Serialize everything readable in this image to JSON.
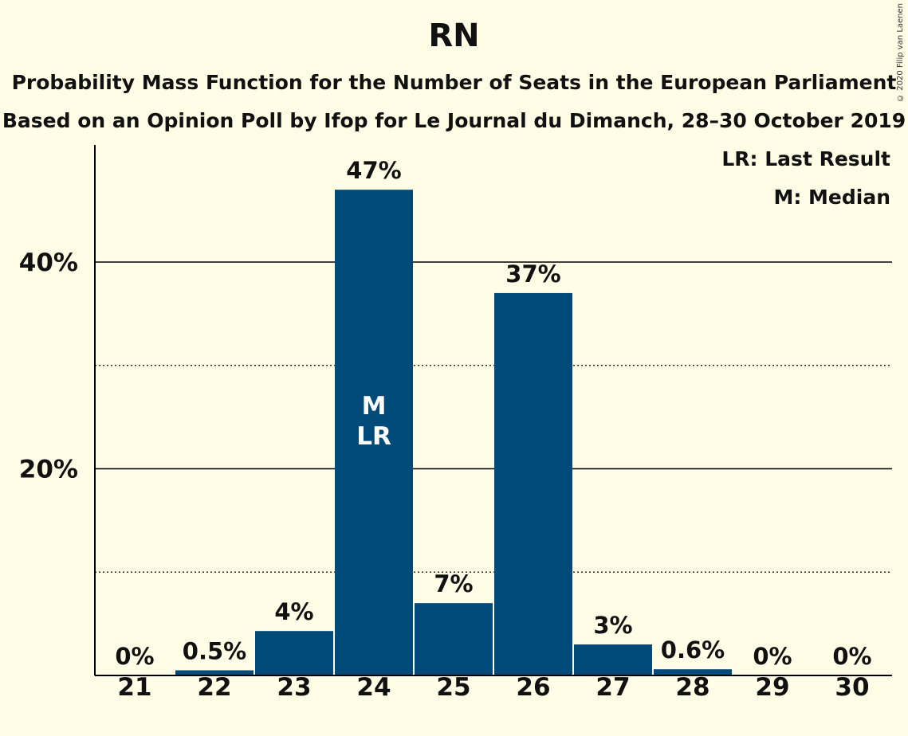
{
  "chart_data": {
    "type": "bar",
    "title": "RN",
    "subtitle": "Probability Mass Function for the Number of Seats in the European Parliament",
    "subtitle2": "Based on an Opinion Poll by Ifop for Le Journal du Dimanch, 28–30 October 2019",
    "copyright": "© 2020 Filip van Laenen",
    "legend": [
      "LR: Last Result",
      "M: Median"
    ],
    "legend_position": "top-right",
    "categories": [
      "21",
      "22",
      "23",
      "24",
      "25",
      "26",
      "27",
      "28",
      "29",
      "30"
    ],
    "values": [
      0,
      0.5,
      4.3,
      47,
      7,
      37,
      3,
      0.6,
      0,
      0
    ],
    "data_labels": [
      "0%",
      "0.5%",
      "4%",
      "47%",
      "7%",
      "37%",
      "3%",
      "0.6%",
      "0%",
      "0%"
    ],
    "y_ticks": [
      {
        "value": 20,
        "label": "20%"
      },
      {
        "value": 40,
        "label": "40%"
      }
    ],
    "minor_gridlines": [
      10,
      30
    ],
    "ylim": [
      0,
      50
    ],
    "bar_annotation": {
      "category": "24",
      "lines": [
        "M",
        "LR"
      ]
    },
    "colors": {
      "bar": "#004a7a",
      "background": "#fffde6",
      "bar_annotation": "#ffffff"
    }
  }
}
